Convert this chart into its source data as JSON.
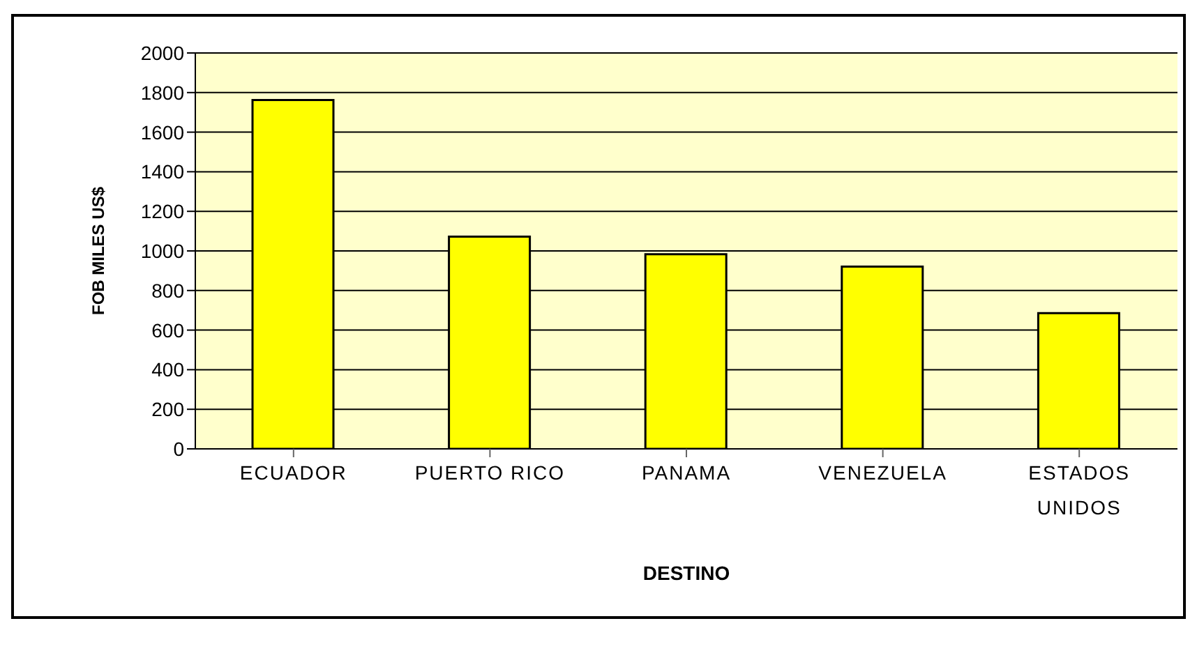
{
  "chart_data": {
    "type": "bar",
    "xlabel": "DESTINO",
    "ylabel": "FOB MILES US$",
    "categories": [
      "ECUADOR",
      "PUERTO RICO",
      "PANAMA",
      "VENEZUELA",
      "ESTADOS UNIDOS"
    ],
    "values": [
      1762,
      1072,
      983,
      921,
      686
    ],
    "color": "#ffff00",
    "ylim": [
      0,
      2000
    ],
    "yticks": [
      0,
      200,
      400,
      600,
      800,
      1000,
      1200,
      1400,
      1600,
      1800,
      2000
    ],
    "grid": "y"
  }
}
